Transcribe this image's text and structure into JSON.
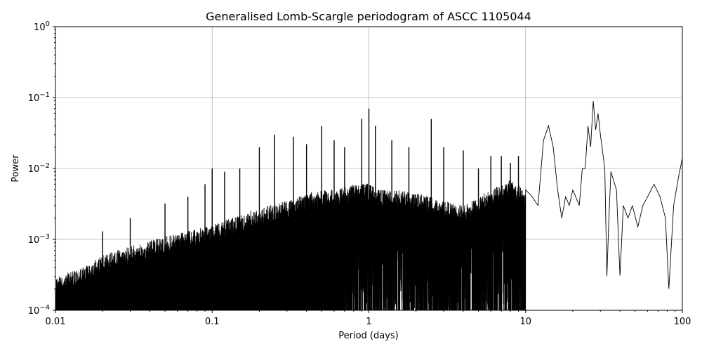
{
  "chart_data": {
    "type": "line",
    "title": "Generalised Lomb-Scargle periodogram of ASCC 1105044",
    "xlabel": "Period (days)",
    "ylabel": "Power",
    "xscale": "log",
    "yscale": "log",
    "xlim": [
      0.01,
      100
    ],
    "ylim": [
      0.0001,
      1
    ],
    "grid": true,
    "line_color": "#000000",
    "x_ticks": [
      {
        "value": 0.01,
        "label": "0.01"
      },
      {
        "value": 0.1,
        "label": "0.1"
      },
      {
        "value": 1,
        "label": "1"
      },
      {
        "value": 10,
        "label": "10"
      },
      {
        "value": 100,
        "label": "100"
      }
    ],
    "y_ticks": [
      {
        "value": 0.0001,
        "base": "10",
        "exp": "−4"
      },
      {
        "value": 0.001,
        "base": "10",
        "exp": "−3"
      },
      {
        "value": 0.01,
        "base": "10",
        "exp": "−2"
      },
      {
        "value": 0.1,
        "base": "10",
        "exp": "−1"
      },
      {
        "value": 1,
        "base": "10",
        "exp": "0"
      }
    ],
    "series": [
      {
        "x": [
          0.01,
          0.015,
          0.02,
          0.03,
          0.05,
          0.07,
          0.1,
          0.15,
          0.2,
          0.3,
          0.4,
          0.5,
          0.6,
          0.7,
          0.8,
          0.9,
          1.0,
          1.2,
          1.5,
          2.0,
          2.5,
          3.0,
          4.0,
          5.0,
          6.0,
          7.0,
          8.0,
          9.0,
          10.0,
          11.0,
          12.0,
          13.0,
          14.0,
          15.0,
          16.0,
          17.0,
          18.0,
          19.0,
          20.0,
          22.0,
          23.0,
          24.0,
          25.0,
          26.0,
          27.0,
          28.0,
          29.0,
          30.0,
          32.0,
          33.0,
          34.0,
          35.0,
          38.0,
          40.0,
          42.0,
          45.0,
          48.0,
          52.0,
          56.0,
          60.0,
          66.0,
          72.0,
          78.0,
          82.0,
          88.0,
          95.0,
          100.0
        ],
        "y": [
          0.0003,
          0.0004,
          0.0006,
          0.0008,
          0.0011,
          0.0013,
          0.0016,
          0.0022,
          0.0028,
          0.0035,
          0.0045,
          0.005,
          0.005,
          0.0055,
          0.006,
          0.0065,
          0.006,
          0.005,
          0.005,
          0.0045,
          0.004,
          0.0035,
          0.003,
          0.004,
          0.005,
          0.006,
          0.007,
          0.006,
          0.005,
          0.004,
          0.003,
          0.025,
          0.04,
          0.02,
          0.005,
          0.002,
          0.004,
          0.003,
          0.005,
          0.003,
          0.01,
          0.01,
          0.04,
          0.02,
          0.09,
          0.035,
          0.06,
          0.03,
          0.01,
          0.0003,
          0.002,
          0.009,
          0.005,
          0.0003,
          0.003,
          0.002,
          0.003,
          0.0015,
          0.003,
          0.004,
          0.006,
          0.004,
          0.002,
          0.0002,
          0.003,
          0.008,
          0.014
        ]
      }
    ],
    "peaks": [
      {
        "x": 0.02,
        "y": 0.0013
      },
      {
        "x": 0.03,
        "y": 0.002
      },
      {
        "x": 0.05,
        "y": 0.0032
      },
      {
        "x": 0.07,
        "y": 0.004
      },
      {
        "x": 0.09,
        "y": 0.006
      },
      {
        "x": 0.1,
        "y": 0.01
      },
      {
        "x": 0.12,
        "y": 0.009
      },
      {
        "x": 0.15,
        "y": 0.01
      },
      {
        "x": 0.2,
        "y": 0.02
      },
      {
        "x": 0.25,
        "y": 0.03
      },
      {
        "x": 0.33,
        "y": 0.028
      },
      {
        "x": 0.4,
        "y": 0.022
      },
      {
        "x": 0.5,
        "y": 0.04
      },
      {
        "x": 0.6,
        "y": 0.025
      },
      {
        "x": 0.7,
        "y": 0.02
      },
      {
        "x": 0.9,
        "y": 0.05
      },
      {
        "x": 1.0,
        "y": 0.07
      },
      {
        "x": 1.1,
        "y": 0.04
      },
      {
        "x": 1.4,
        "y": 0.025
      },
      {
        "x": 1.8,
        "y": 0.02
      },
      {
        "x": 2.5,
        "y": 0.05
      },
      {
        "x": 3.0,
        "y": 0.02
      },
      {
        "x": 4.0,
        "y": 0.018
      },
      {
        "x": 5.0,
        "y": 0.01
      },
      {
        "x": 6.0,
        "y": 0.015
      },
      {
        "x": 7.0,
        "y": 0.015
      },
      {
        "x": 8.0,
        "y": 0.012
      },
      {
        "x": 9.0,
        "y": 0.015
      }
    ]
  }
}
